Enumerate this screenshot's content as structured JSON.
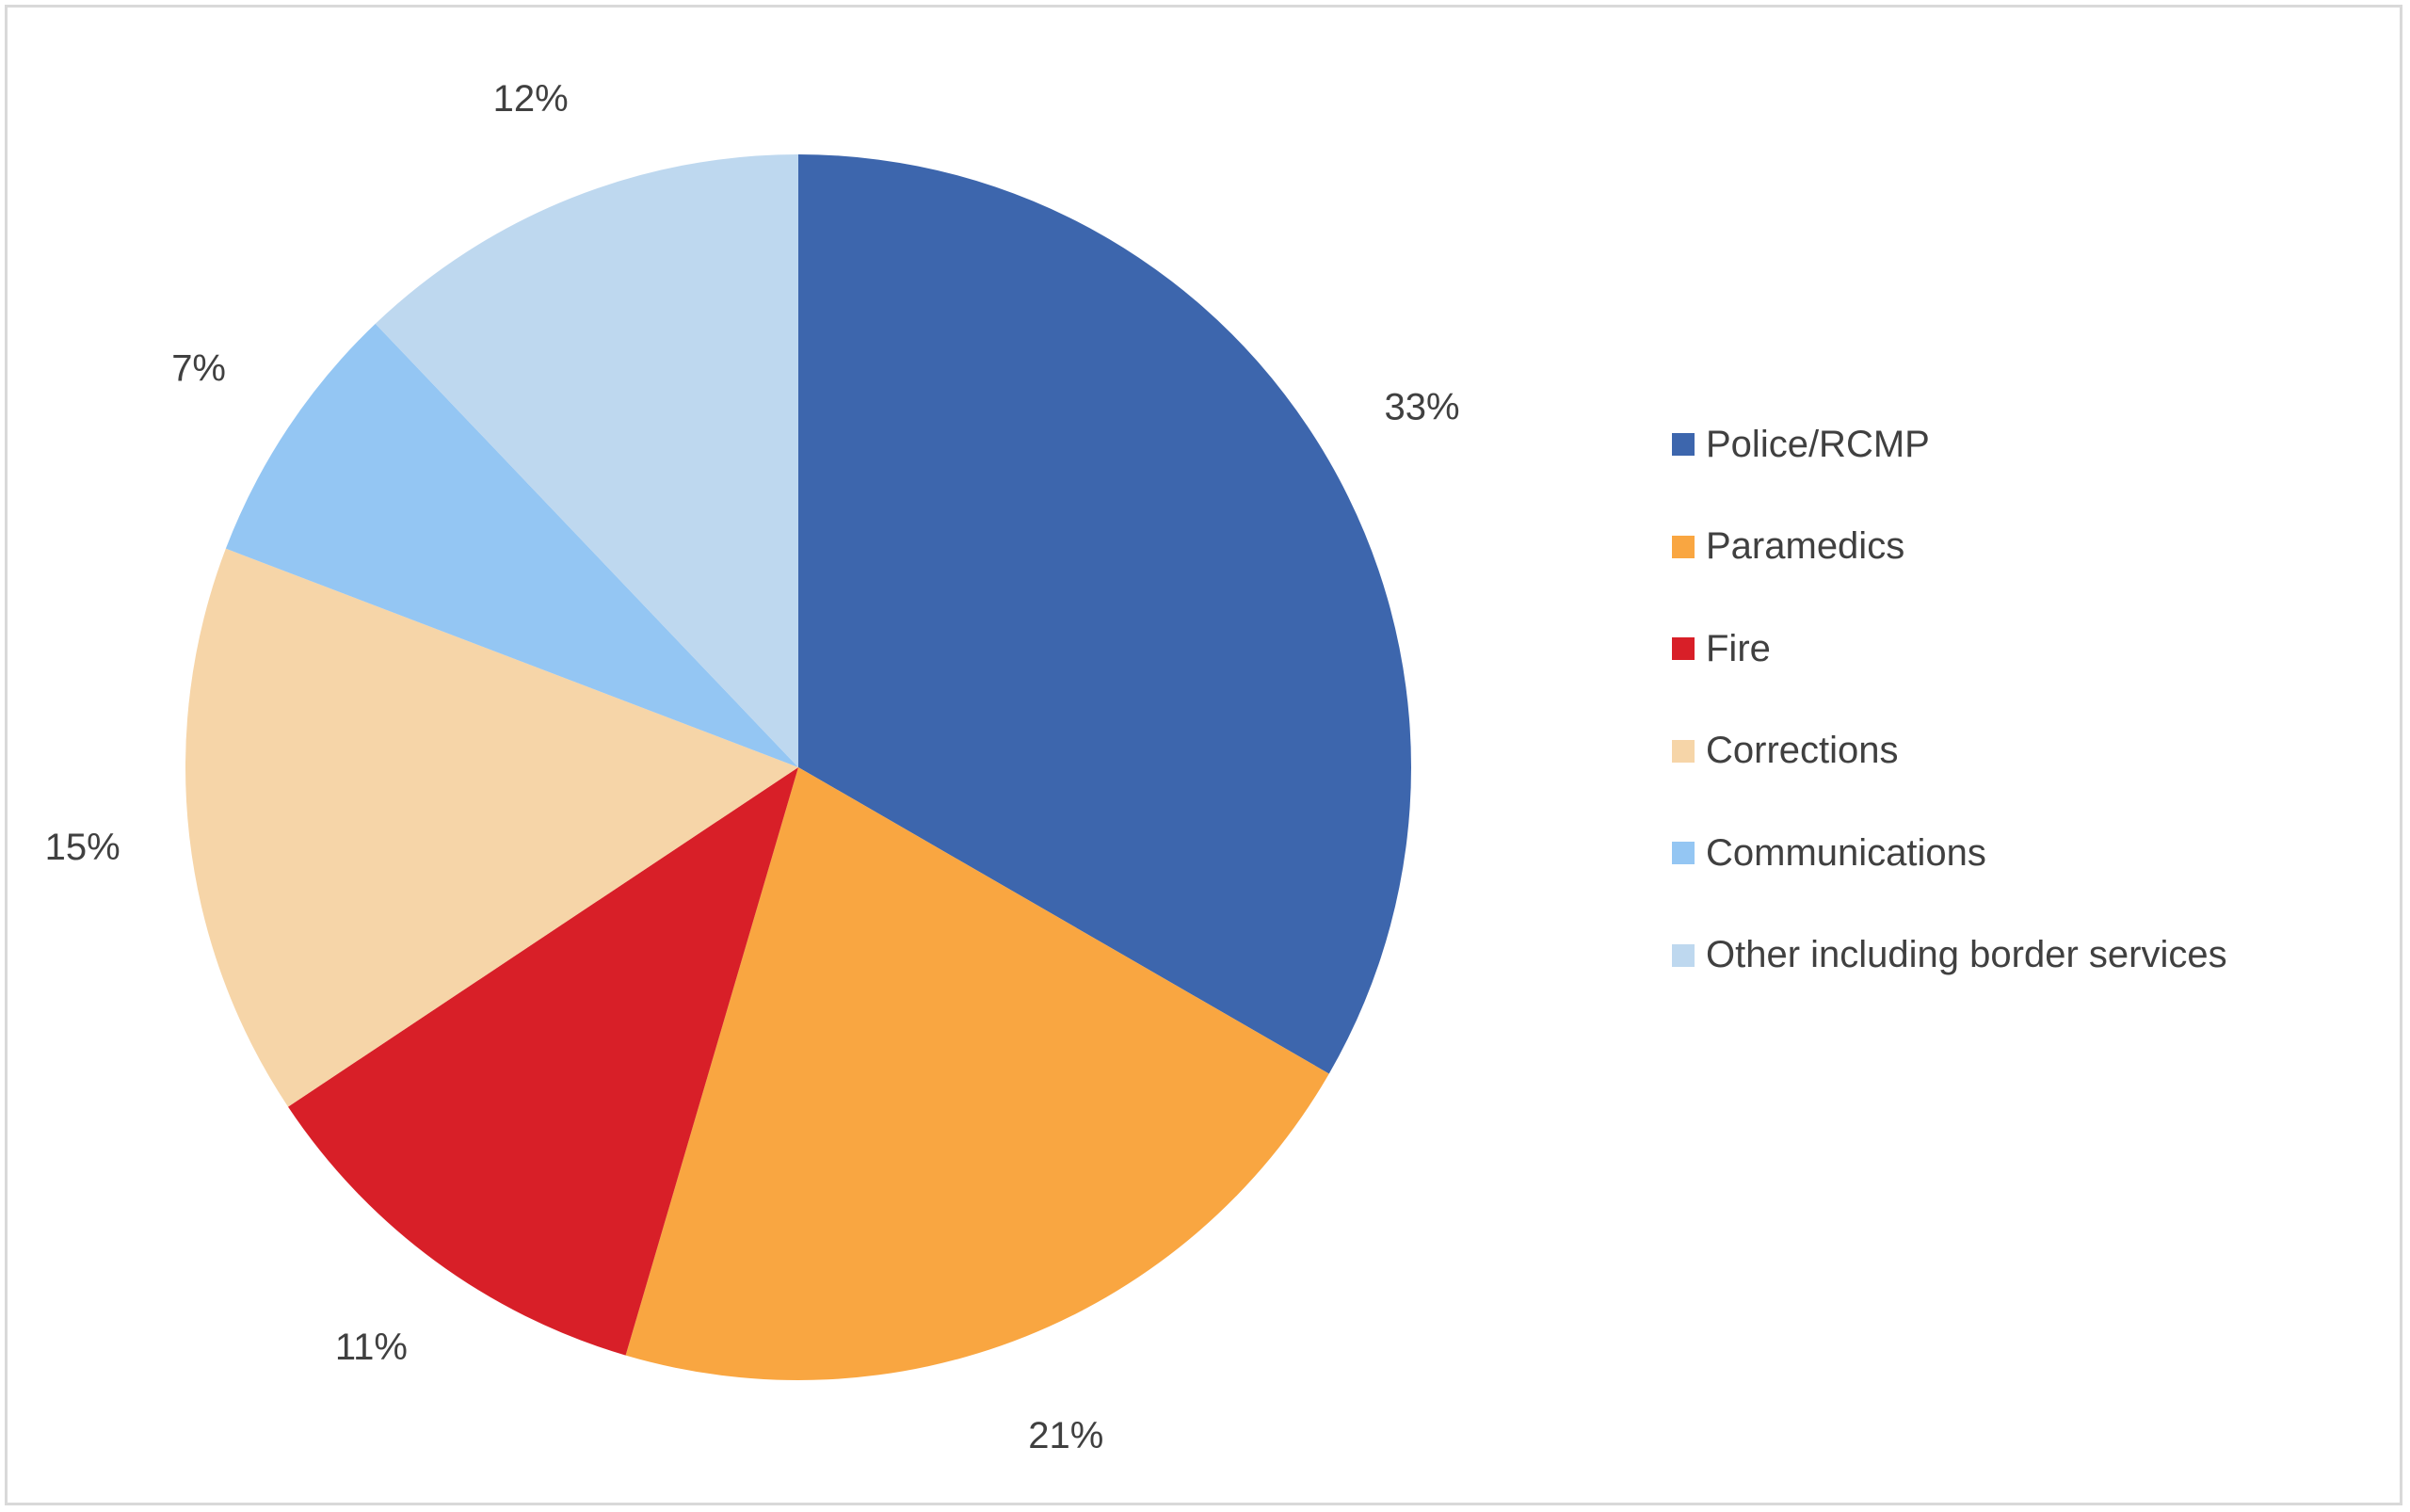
{
  "chart_data": {
    "type": "pie",
    "title": "",
    "categories": [
      "Police/RCMP",
      "Paramedics",
      "Fire",
      "Corrections",
      "Communications",
      "Other including border services"
    ],
    "values": [
      33,
      21,
      11,
      15,
      7,
      12
    ],
    "value_labels": [
      "33%",
      "21%",
      "11%",
      "15%",
      "7%",
      "12%"
    ],
    "colors": [
      "#3d66ad",
      "#f9a641",
      "#d81f28",
      "#f6d5a8",
      "#94c6f3",
      "#bed8ef"
    ],
    "start_angle": "12 o'clock",
    "direction": "clockwise",
    "legend_position": "right"
  }
}
